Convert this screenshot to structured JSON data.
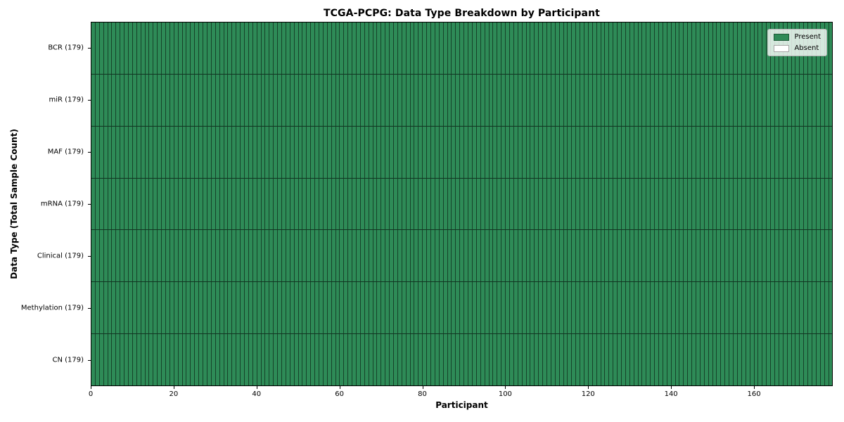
{
  "chart_data": {
    "type": "heatmap",
    "title": "TCGA-PCPG: Data Type Breakdown by Participant",
    "xlabel": "Participant",
    "ylabel": "Data Type (Total Sample Count)",
    "x_ticks": [
      0,
      20,
      40,
      60,
      80,
      100,
      120,
      140,
      160
    ],
    "xlim": [
      0,
      179
    ],
    "n_participants": 179,
    "grid": "cell borders on",
    "legend_position": "upper right",
    "colors": {
      "present": "#2e8b57",
      "absent": "#ffffff",
      "cell_border": "rgba(0,0,0,0.52)"
    },
    "legend": [
      {
        "label": "Present",
        "value": 1,
        "color": "#2e8b57"
      },
      {
        "label": "Absent",
        "value": 0,
        "color": "#ffffff"
      }
    ],
    "rows": [
      {
        "label": "BCR (179)",
        "data_type": "BCR",
        "total_sample_count": 179,
        "present_count": 179,
        "absent_count": 0,
        "runs": [
          {
            "value": 1,
            "count": 179
          }
        ]
      },
      {
        "label": "miR (179)",
        "data_type": "miR",
        "total_sample_count": 179,
        "present_count": 179,
        "absent_count": 0,
        "runs": [
          {
            "value": 1,
            "count": 179
          }
        ]
      },
      {
        "label": "MAF (179)",
        "data_type": "MAF",
        "total_sample_count": 179,
        "present_count": 179,
        "absent_count": 0,
        "runs": [
          {
            "value": 1,
            "count": 179
          }
        ]
      },
      {
        "label": "mRNA (179)",
        "data_type": "mRNA",
        "total_sample_count": 179,
        "present_count": 179,
        "absent_count": 0,
        "runs": [
          {
            "value": 1,
            "count": 179
          }
        ]
      },
      {
        "label": "Clinical (179)",
        "data_type": "Clinical",
        "total_sample_count": 179,
        "present_count": 179,
        "absent_count": 0,
        "runs": [
          {
            "value": 1,
            "count": 179
          }
        ]
      },
      {
        "label": "Methylation (179)",
        "data_type": "Methylation",
        "total_sample_count": 179,
        "present_count": 179,
        "absent_count": 0,
        "runs": [
          {
            "value": 1,
            "count": 179
          }
        ]
      },
      {
        "label": "CN (179)",
        "data_type": "CN",
        "total_sample_count": 179,
        "present_count": 179,
        "absent_count": 0,
        "runs": [
          {
            "value": 1,
            "count": 179
          }
        ]
      }
    ]
  }
}
